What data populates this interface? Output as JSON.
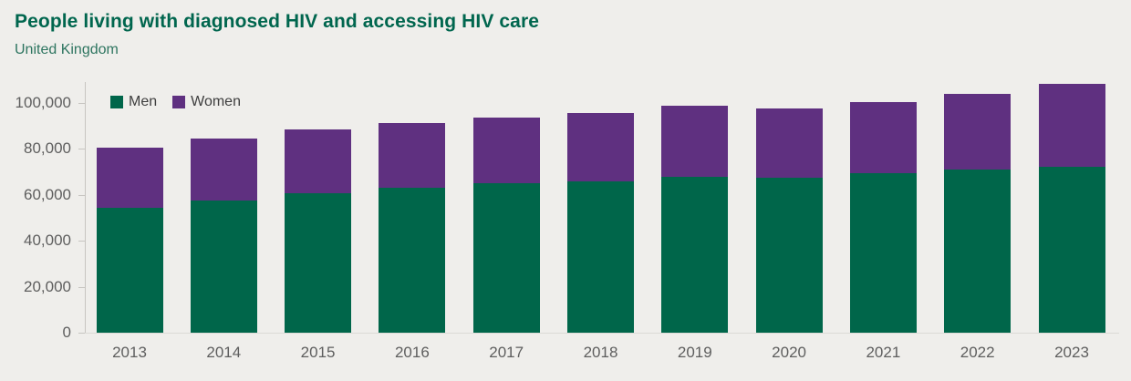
{
  "colors": {
    "background": "#efeeeb",
    "title": "#00664e",
    "subtitle": "#2e7560",
    "axis_text": "#5e5e5e",
    "legend_text": "#3e3e3e",
    "axis_line": "#c7c5c1",
    "baseline": "#dcdad6",
    "men": "#00664a",
    "women": "#5f3080"
  },
  "chart_data": {
    "type": "bar",
    "stacked": true,
    "title": "People living with diagnosed HIV and accessing HIV care",
    "subtitle": "United Kingdom",
    "categories": [
      "2013",
      "2014",
      "2015",
      "2016",
      "2017",
      "2018",
      "2019",
      "2020",
      "2021",
      "2022",
      "2023"
    ],
    "series": [
      {
        "name": "Men",
        "color": "#00664a",
        "values": [
          54200,
          57600,
          60700,
          63200,
          64900,
          65700,
          67900,
          67300,
          69300,
          70900,
          72200
        ]
      },
      {
        "name": "Women",
        "color": "#5f3080",
        "values": [
          26300,
          26900,
          27800,
          28200,
          28900,
          29800,
          31000,
          30400,
          31000,
          32900,
          36000
        ]
      }
    ],
    "totals": [
      80500,
      84500,
      88500,
      91400,
      93800,
      95500,
      98900,
      97700,
      100300,
      103800,
      108200
    ],
    "xlabel": "",
    "ylabel": "",
    "ylim": [
      0,
      109000
    ],
    "yticks": {
      "values": [
        0,
        20000,
        40000,
        60000,
        80000,
        100000
      ],
      "labels": [
        "0",
        "20,000",
        "40,000",
        "60,000",
        "80,000",
        "100,000"
      ]
    },
    "grid": false,
    "legend_position": "top-left"
  }
}
